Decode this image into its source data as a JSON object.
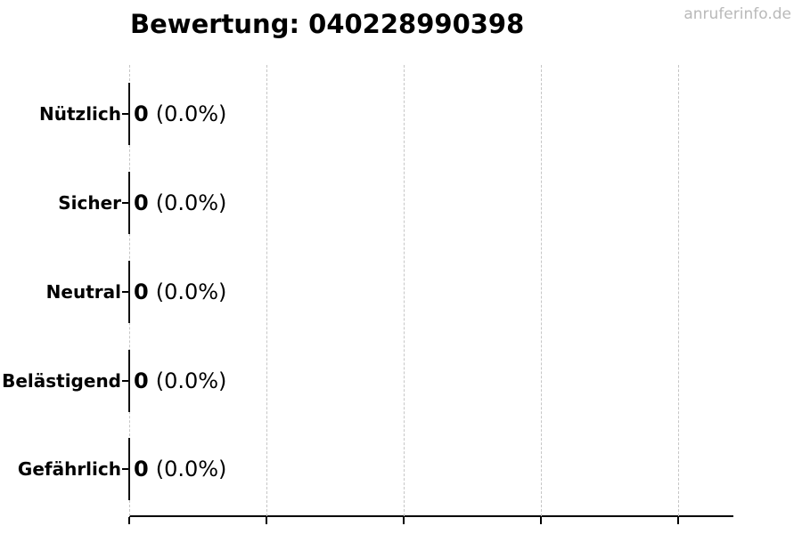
{
  "header": {
    "watermark": "anruferinfo.de"
  },
  "chart_data": {
    "type": "bar",
    "orientation": "horizontal",
    "title": "Bewertung: 040228990398",
    "categories": [
      "Nützlich",
      "Sicher",
      "Neutral",
      "Belästigend",
      "Gefährlich"
    ],
    "values": [
      0,
      0,
      0,
      0,
      0
    ],
    "percent_labels": [
      "(0.0%)",
      "(0.0%)",
      "(0.0%)",
      "(0.0%)",
      "(0.0%)"
    ],
    "xlabel": "",
    "ylabel": "",
    "xlim": [
      0,
      4.4
    ],
    "x_gridlines": [
      0,
      1,
      2,
      3,
      4
    ],
    "x_tick_labels": [],
    "grid": "vertical-dashed",
    "legend_position": "none",
    "colors": {
      "background": "#ffffff",
      "text": "#000000",
      "bar_edge": "#111111",
      "grid": "#c6c6c6",
      "axis": "#000000",
      "watermark": "#b9b9b9"
    }
  }
}
